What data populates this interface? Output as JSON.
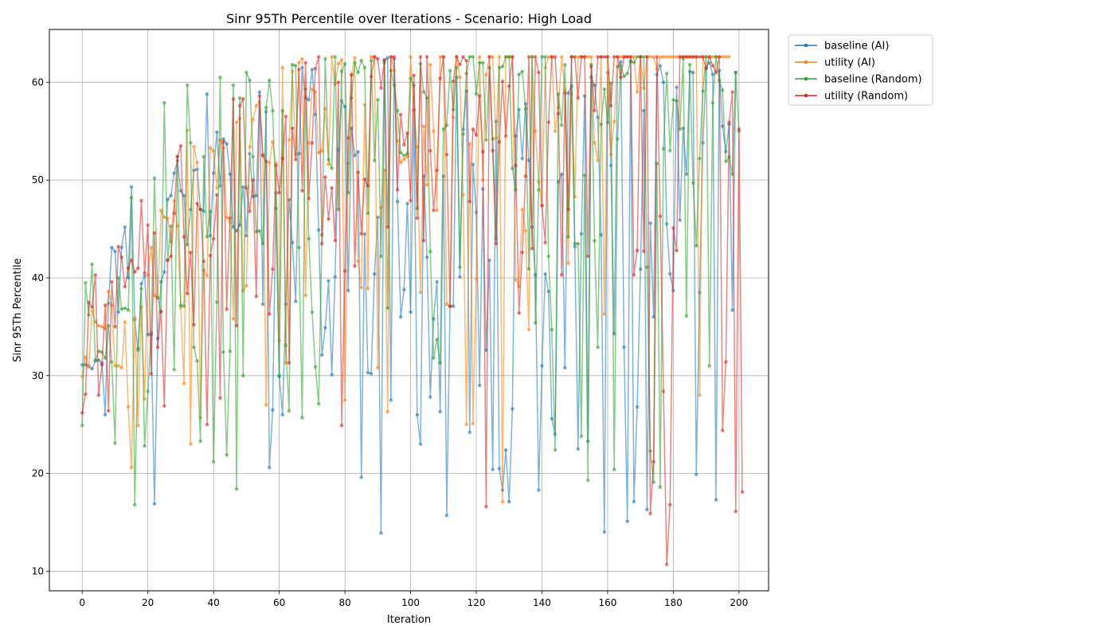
{
  "chart_data": {
    "type": "line",
    "title": "Sinr 95Th Percentile over Iterations - Scenario: High Load",
    "xlabel": "Iteration",
    "ylabel": "Sinr 95Th Percentile",
    "xlim": [
      -10,
      209
    ],
    "ylim": [
      8,
      65.4
    ],
    "xticks": [
      0,
      20,
      40,
      60,
      80,
      100,
      120,
      140,
      160,
      180,
      200
    ],
    "yticks": [
      10,
      20,
      30,
      40,
      50,
      60
    ],
    "grid": true,
    "legend_position": "outside-top-right",
    "colors": {
      "baseline (AI)": "#1f77b4",
      "utility (AI)": "#ff7f0e",
      "baseline (Random)": "#2ca02c",
      "utility (Random)": "#d62728"
    },
    "series": [
      {
        "name": "baseline (AI)",
        "values": [
          31.1,
          31.1,
          31.0,
          30.7,
          31.5,
          31.6,
          31.3,
          26.0,
          37.4,
          43.1,
          42.7,
          36.5,
          43.1,
          45.2,
          40.0,
          49.3,
          35.7,
          32.6,
          39.4,
          40.2,
          34.2,
          34.2,
          16.9,
          33.8,
          39.6,
          40.6,
          48.0,
          48.4,
          50.7,
          52.0,
          48.9,
          48.4,
          43.4,
          47.0,
          51.0,
          51.1,
          47.0,
          46.8,
          58.8,
          44.3,
          50.7,
          54.9,
          49.4,
          54.2,
          53.7,
          50.6,
          45.2,
          44.8,
          45.4,
          49.3,
          44.3,
          52.7,
          48.3,
          48.4,
          59.0,
          37.3,
          57.0,
          20.6,
          26.5,
          48.7,
          30.0,
          26.0,
          37.3,
          48.0,
          43.6,
          37.6,
          52.7,
          61.5,
          58.4,
          58.2,
          61.3,
          56.7,
          44.9,
          32.1,
          34.9,
          39.7,
          30.1,
          40.1,
          53.1,
          58.1,
          57.5,
          38.7,
          55.3,
          52.5,
          52.9,
          19.6,
          44.5,
          30.3,
          30.2,
          40.4,
          46.2,
          13.9,
          62.2,
          62.5,
          27.5,
          62.4,
          47.8,
          36.0,
          38.8,
          47.6,
          36.5,
          57.2,
          26.0,
          23.0,
          50.4,
          42.1,
          27.8,
          35.8,
          39.6,
          26.3,
          50.4,
          15.7,
          37.1,
          37.1,
          60.5,
          40.1,
          55.2,
          59.1,
          24.2,
          51.6,
          46.7,
          29.0,
          49.1,
          32.6,
          41.8,
          20.4,
          56.0,
          20.5,
          18.3,
          22.4,
          17.1,
          26.6,
          54.5,
          57.2,
          52.2,
          57.8,
          52.0,
          45.2,
          40.3,
          18.3,
          31.0,
          40.4,
          38.6,
          25.6,
          24.0,
          49.8,
          50.6,
          30.8,
          58.9,
          59.6,
          43.2,
          22.5,
          44.5,
          58.6,
          23.3,
          60.5,
          59.7,
          56.4,
          44.4,
          14.0,
          61.0,
          51.5,
          34.3,
          61.6,
          62.1,
          32.9,
          15.1,
          62.1,
          17.1,
          26.8,
          40.9,
          57.1,
          16.3,
          45.6,
          36.0,
          60.8,
          61.7,
          60.0,
          45.5,
          40.4,
          38.7,
          59.5,
          45.9,
          55.3,
          50.6,
          61.1,
          61.0,
          19.9,
          38.5,
          53.8,
          61.5,
          62.0,
          60.8,
          17.3,
          61.2,
          55.5,
          52.9,
          55.7,
          36.7,
          61.0
        ]
      },
      {
        "name": "utility (AI)",
        "values": [
          29.9,
          31.9,
          30.9,
          36.6,
          35.5,
          35.1,
          35.0,
          34.8,
          38.6,
          37.2,
          31.0,
          31.0,
          30.8,
          35.5,
          26.8,
          20.6,
          35.9,
          24.9,
          37.0,
          27.6,
          40.3,
          43.1,
          38.2,
          37.9,
          46.9,
          46.2,
          46.1,
          43.7,
          47.9,
          45.3,
          37.0,
          29.2,
          55.1,
          23.0,
          53.4,
          51.8,
          25.7,
          40.8,
          40.2,
          53.3,
          53.0,
          49.2,
          54.1,
          53.3,
          46.2,
          45.7,
          35.8,
          55.9,
          56.3,
          38.7,
          39.2,
          53.4,
          56.2,
          57.6,
          58.0,
          52.6,
          27.0,
          51.8,
          53.9,
          51.7,
          33.6,
          61.5,
          31.3,
          54.1,
          61.1,
          52.6,
          62.0,
          62.4,
          38.2,
          53.8,
          59.3,
          59.0,
          52.8,
          53.0,
          57.3,
          51.6,
          62.6,
          59.8,
          61.9,
          62.3,
          27.5,
          51.7,
          60.7,
          62.5,
          41.7,
          39.0,
          57.7,
          38.9,
          62.6,
          62.6,
          30.8,
          47.2,
          51.0,
          26.3,
          62.6,
          61.2,
          54.0,
          51.8,
          52.1,
          52.4,
          62.6,
          57.1,
          53.4,
          38.5,
          55.5,
          49.5,
          61.8,
          55.0,
          46.9,
          62.6,
          62.6,
          37.3,
          37.1,
          56.4,
          62.6,
          60.5,
          48.5,
          25.0,
          53.7,
          25.1,
          39.9,
          62.6,
          50.0,
          60.8,
          62.6,
          62.6,
          54.3,
          62.6,
          17.1,
          62.6,
          62.6,
          62.6,
          39.8,
          39.1,
          47.0,
          44.8,
          34.7,
          62.6,
          55.0,
          49.8,
          47.4,
          61.5,
          62.6,
          62.6,
          55.0,
          57.4,
          62.6,
          59.2,
          41.5,
          58.8,
          48.3,
          62.6,
          62.6,
          62.6,
          62.6,
          62.6,
          53.8,
          52.0,
          62.6,
          36.3,
          62.6,
          52.6,
          56.0,
          62.6,
          62.6,
          62.6,
          62.6,
          62.6,
          62.6,
          59.0,
          62.6,
          59.4,
          62.6,
          62.6,
          62.6,
          61.3,
          62.6,
          62.6,
          62.6,
          62.6,
          62.6,
          62.6,
          62.6,
          62.6,
          62.6,
          62.6,
          62.6,
          62.6,
          28.0,
          62.6,
          62.6,
          62.6,
          62.6,
          62.6,
          62.6,
          62.6,
          62.6,
          62.6
        ]
      },
      {
        "name": "baseline (Random)",
        "values": [
          24.9,
          39.5,
          36.2,
          41.4,
          31.6,
          32.5,
          32.4,
          31.8,
          35.1,
          31.4,
          23.1,
          40.0,
          36.8,
          36.9,
          36.7,
          48.2,
          16.8,
          32.8,
          38.9,
          22.8,
          28.4,
          34.4,
          50.2,
          38.0,
          36.5,
          57.9,
          41.8,
          45.3,
          30.6,
          52.4,
          37.2,
          37.1,
          59.7,
          53.8,
          32.9,
          31.5,
          23.3,
          52.4,
          44.2,
          46.8,
          21.2,
          37.5,
          60.5,
          32.4,
          21.9,
          32.5,
          59.7,
          18.4,
          58.4,
          30.0,
          61.0,
          60.2,
          52.4,
          44.7,
          44.8,
          43.5,
          57.4,
          60.2,
          57.1,
          47.1,
          29.9,
          57.1,
          33.1,
          26.4,
          61.8,
          61.7,
          43.1,
          25.7,
          59.3,
          44.0,
          36.5,
          30.9,
          27.1,
          44.4,
          62.4,
          52.1,
          51.2,
          62.6,
          47.0,
          61.1,
          61.9,
          48.7,
          58.4,
          62.0,
          61.0,
          62.2,
          61.5,
          46.6,
          62.2,
          52.0,
          58.2,
          42.2,
          62.0,
          36.9,
          61.2,
          59.7,
          57.1,
          52.8,
          52.5,
          52.7,
          60.4,
          59.7,
          47.1,
          61.9,
          59.0,
          58.4,
          42.7,
          31.8,
          33.7,
          31.3,
          55.2,
          55.6,
          61.2,
          57.2,
          61.5,
          41.1,
          54.7,
          60.9,
          62.6,
          62.6,
          58.8,
          62.0,
          62.0,
          54.1,
          61.5,
          54.2,
          44.0,
          61.5,
          61.6,
          62.6,
          62.6,
          51.2,
          49.0,
          60.8,
          61.1,
          57.3,
          40.9,
          62.6,
          35.4,
          49.0,
          62.6,
          62.6,
          42.2,
          34.7,
          22.4,
          58.8,
          55.6,
          61.8,
          44.2,
          62.6,
          43.5,
          43.5,
          23.8,
          50.5,
          19.3,
          61.8,
          43.8,
          32.9,
          55.7,
          59.3,
          55.9,
          59.9,
          20.4,
          54.2,
          61.7,
          60.6,
          60.9,
          62.2,
          62.0,
          62.6,
          62.6,
          62.6,
          41.1,
          22.3,
          19.1,
          51.7,
          18.6,
          53.2,
          60.9,
          53.0,
          58.2,
          58.1,
          55.2,
          62.4,
          36.1,
          61.8,
          49.7,
          43.3,
          52.2,
          59.1,
          62.6,
          31.0,
          57.9,
          62.6,
          60.2,
          59.2,
          51.9,
          52.4,
          50.6,
          61.0,
          55.0
        ]
      },
      {
        "name": "utility (Random)",
        "values": [
          26.2,
          28.1,
          37.5,
          37.0,
          40.3,
          28.0,
          31.1,
          37.2,
          26.4,
          39.6,
          35.0,
          43.2,
          42.1,
          39.1,
          41.0,
          41.8,
          40.6,
          41.0,
          47.9,
          40.5,
          45.4,
          30.2,
          44.6,
          32.9,
          36.6,
          26.9,
          41.8,
          42.2,
          46.6,
          52.4,
          53.5,
          44.2,
          38.4,
          42.6,
          35.2,
          47.6,
          47.0,
          41.7,
          25.0,
          42.3,
          44.0,
          48.5,
          27.7,
          53.9,
          36.8,
          46.1,
          58.3,
          35.1,
          57.6,
          58.3,
          49.2,
          46.8,
          50.0,
          38.1,
          58.6,
          52.5,
          51.9,
          36.3,
          40.9,
          51.5,
          48.7,
          52.2,
          56.5,
          31.3,
          55.3,
          52.1,
          61.3,
          48.9,
          62.0,
          48.1,
          53.8,
          61.4,
          62.6,
          43.5,
          50.3,
          46.0,
          49.2,
          43.8,
          60.0,
          24.9,
          40.7,
          54.3,
          60.8,
          41.2,
          50.8,
          44.5,
          50.1,
          49.4,
          60.6,
          62.6,
          62.4,
          59.4,
          62.3,
          45.2,
          62.6,
          62.6,
          49.0,
          56.7,
          53.6,
          54.8,
          47.9,
          60.7,
          46.1,
          62.6,
          43.8,
          62.6,
          53.0,
          46.9,
          51.0,
          60.4,
          62.6,
          52.6,
          37.1,
          60.1,
          62.6,
          61.8,
          62.6,
          62.2,
          47.8,
          55.2,
          54.6,
          58.6,
          52.9,
          16.6,
          62.6,
          53.0,
          43.5,
          53.9,
          60.1,
          54.5,
          59.6,
          62.6,
          51.5,
          36.4,
          42.6,
          50.4,
          62.6,
          43.0,
          62.6,
          61.0,
          47.4,
          43.6,
          55.9,
          62.6,
          62.6,
          56.8,
          40.3,
          58.9,
          47.0,
          62.6,
          62.6,
          58.4,
          62.6,
          62.6,
          42.2,
          61.6,
          57.1,
          62.6,
          62.6,
          62.6,
          62.6,
          57.6,
          62.6,
          62.6,
          60.5,
          62.6,
          62.6,
          62.6,
          40.3,
          42.8,
          62.6,
          42.7,
          62.6,
          15.9,
          21.2,
          62.6,
          46.3,
          28.4,
          10.7,
          16.8,
          45.1,
          42.8,
          62.6,
          62.6,
          62.6,
          62.6,
          62.6,
          62.6,
          62.6,
          62.6,
          61.4,
          62.6,
          61.7,
          61.0,
          62.6,
          24.4,
          31.4,
          55.9,
          59.0,
          16.1,
          55.2,
          18.1
        ]
      }
    ]
  }
}
